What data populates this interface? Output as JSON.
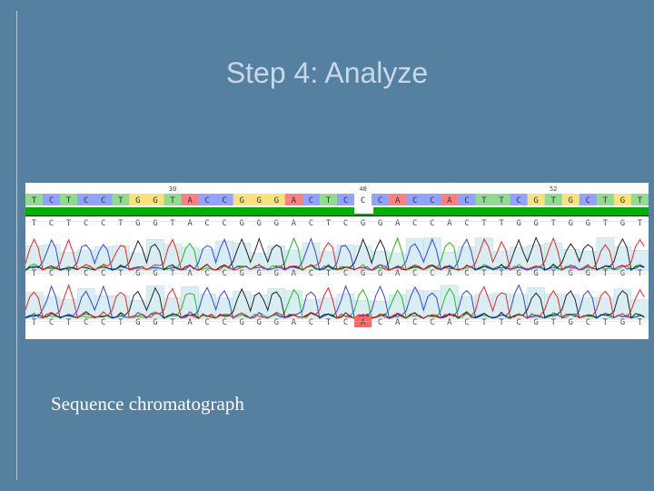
{
  "slide": {
    "title": "Step 4: Analyze",
    "caption": "Sequence chromatograph"
  },
  "chromatogram": {
    "position_markers": [
      "30",
      "40",
      "52"
    ],
    "consensus": [
      "T",
      "C",
      "T",
      "C",
      "C",
      "T",
      "G",
      "G",
      "T",
      "A",
      "C",
      "C",
      "G",
      "G",
      "G",
      "A",
      "C",
      "T",
      "C",
      "C",
      "C",
      "A",
      "C",
      "C",
      "A",
      "C",
      "T",
      "T",
      "C",
      "G",
      "T",
      "G",
      "C",
      "T",
      "G",
      "T"
    ],
    "reads": [
      [
        "T",
        "C",
        "T",
        "C",
        "C",
        "T",
        "G",
        "G",
        "T",
        "A",
        "C",
        "C",
        "G",
        "G",
        "G",
        "A",
        "C",
        "T",
        "C",
        "G",
        "G",
        "A",
        "C",
        "C",
        "A",
        "C",
        "T",
        "T",
        "G",
        "G",
        "T",
        "G",
        "G",
        "T",
        "G",
        "T"
      ],
      [
        "T",
        "C",
        "T",
        "C",
        "C",
        "T",
        "G",
        "G",
        "T",
        "A",
        "C",
        "C",
        "G",
        "G",
        "G",
        "A",
        "C",
        "T",
        "C",
        "G",
        "G",
        "A",
        "C",
        "C",
        "A",
        "C",
        "T",
        "T",
        "G",
        "G",
        "T",
        "G",
        "G",
        "T",
        "G",
        "T"
      ],
      [
        "T",
        "C",
        "T",
        "C",
        "C",
        "T",
        "G",
        "G",
        "T",
        "A",
        "C",
        "C",
        "G",
        "G",
        "G",
        "A",
        "C",
        "T",
        "C",
        "A",
        "C",
        "A",
        "C",
        "C",
        "A",
        "C",
        "T",
        "T",
        "C",
        "G",
        "T",
        "G",
        "C",
        "T",
        "G",
        "T"
      ]
    ],
    "mismatch_index": 19,
    "base_colors": {
      "A": "#22bb22",
      "C": "#3344ee",
      "G": "#222222",
      "T": "#ee2222"
    },
    "consensus_fill": {
      "A": "#ff8080",
      "C": "#8fa3ff",
      "G": "#f8e27a",
      "T": "#8fdc8f"
    },
    "highlight_color": "#ff6666",
    "coverage_color": "#00b000"
  }
}
